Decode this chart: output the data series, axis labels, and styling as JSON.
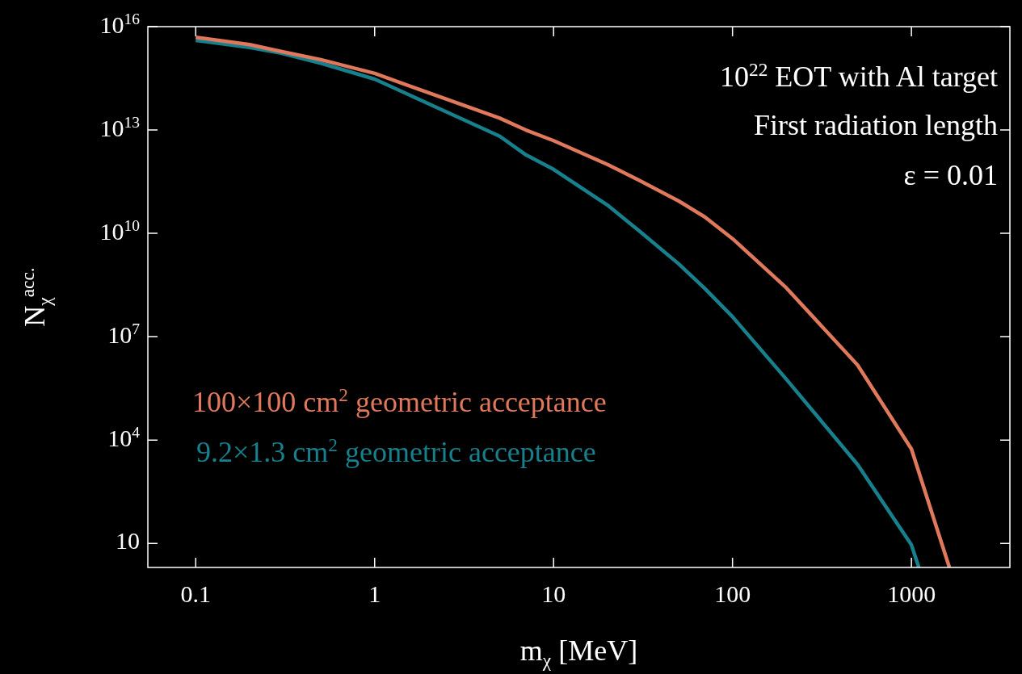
{
  "chart_data": {
    "type": "line",
    "log": "xy",
    "xlabel": "m$_{χ}$ [MeV]",
    "ylabel": "N$_{χ}$$^{acc.}$",
    "xlim": [
      0.054,
      3550
    ],
    "ylim": [
      2,
      1e+16
    ],
    "xticks": [
      0.1,
      1,
      10,
      100,
      1000
    ],
    "yticks": [
      10,
      {
        "value": 10000,
        "label": "10$^{4}$"
      },
      {
        "value": 10000000.0,
        "label": "10$^{7}$"
      },
      {
        "value": 10000000000.0,
        "label": "10$^{10}$"
      },
      {
        "value": 10000000000000.0,
        "label": "10$^{13}$"
      },
      {
        "value": 1e+16,
        "label": "10$^{16}$"
      }
    ],
    "marker": "none",
    "line_style": "solid",
    "legend": "left",
    "annotations": [
      "10$^{22}$ EOT with Al target",
      "First radiation length",
      "ε = 0.01"
    ],
    "series": [
      {
        "name": "100×100 cm$^{2}$ geometric acceptance",
        "color": "#e0785c",
        "x": [
          0.1,
          0.2,
          0.3,
          0.5,
          1,
          2,
          5,
          7,
          10,
          20,
          30,
          50,
          70,
          100,
          200,
          500,
          1000,
          1630
        ],
        "values": [
          4900000000000000.0,
          3000000000000000.0,
          1900000000000000.0,
          1100000000000000.0,
          440000000000000.0,
          120000000000000.0,
          22000000000000.0,
          10000000000000.0,
          4900000000000.0,
          1000000000000.0,
          350000000000.0,
          87000000000.0,
          30000000000.0,
          7000000000.0,
          260000000.0,
          1500000.0,
          5500,
          2
        ]
      },
      {
        "name": "9.2×1.3 cm$^{2}$ geometric acceptance",
        "color": "#17808c",
        "x": [
          0.1,
          0.2,
          0.3,
          0.5,
          1,
          2,
          5,
          7,
          10,
          20,
          30,
          50,
          70,
          100,
          200,
          500,
          1000,
          1100
        ],
        "values": [
          4000000000000000.0,
          2500000000000000.0,
          1700000000000000.0,
          870000000000000.0,
          300000000000000.0,
          58000000000000.0,
          6600000000000.0,
          1900000000000.0,
          720000000000.0,
          66000000000.0,
          12000000000.0,
          1300000000.0,
          250000000.0,
          38000000.0,
          580000.0,
          1950,
          9,
          2
        ]
      }
    ]
  }
}
